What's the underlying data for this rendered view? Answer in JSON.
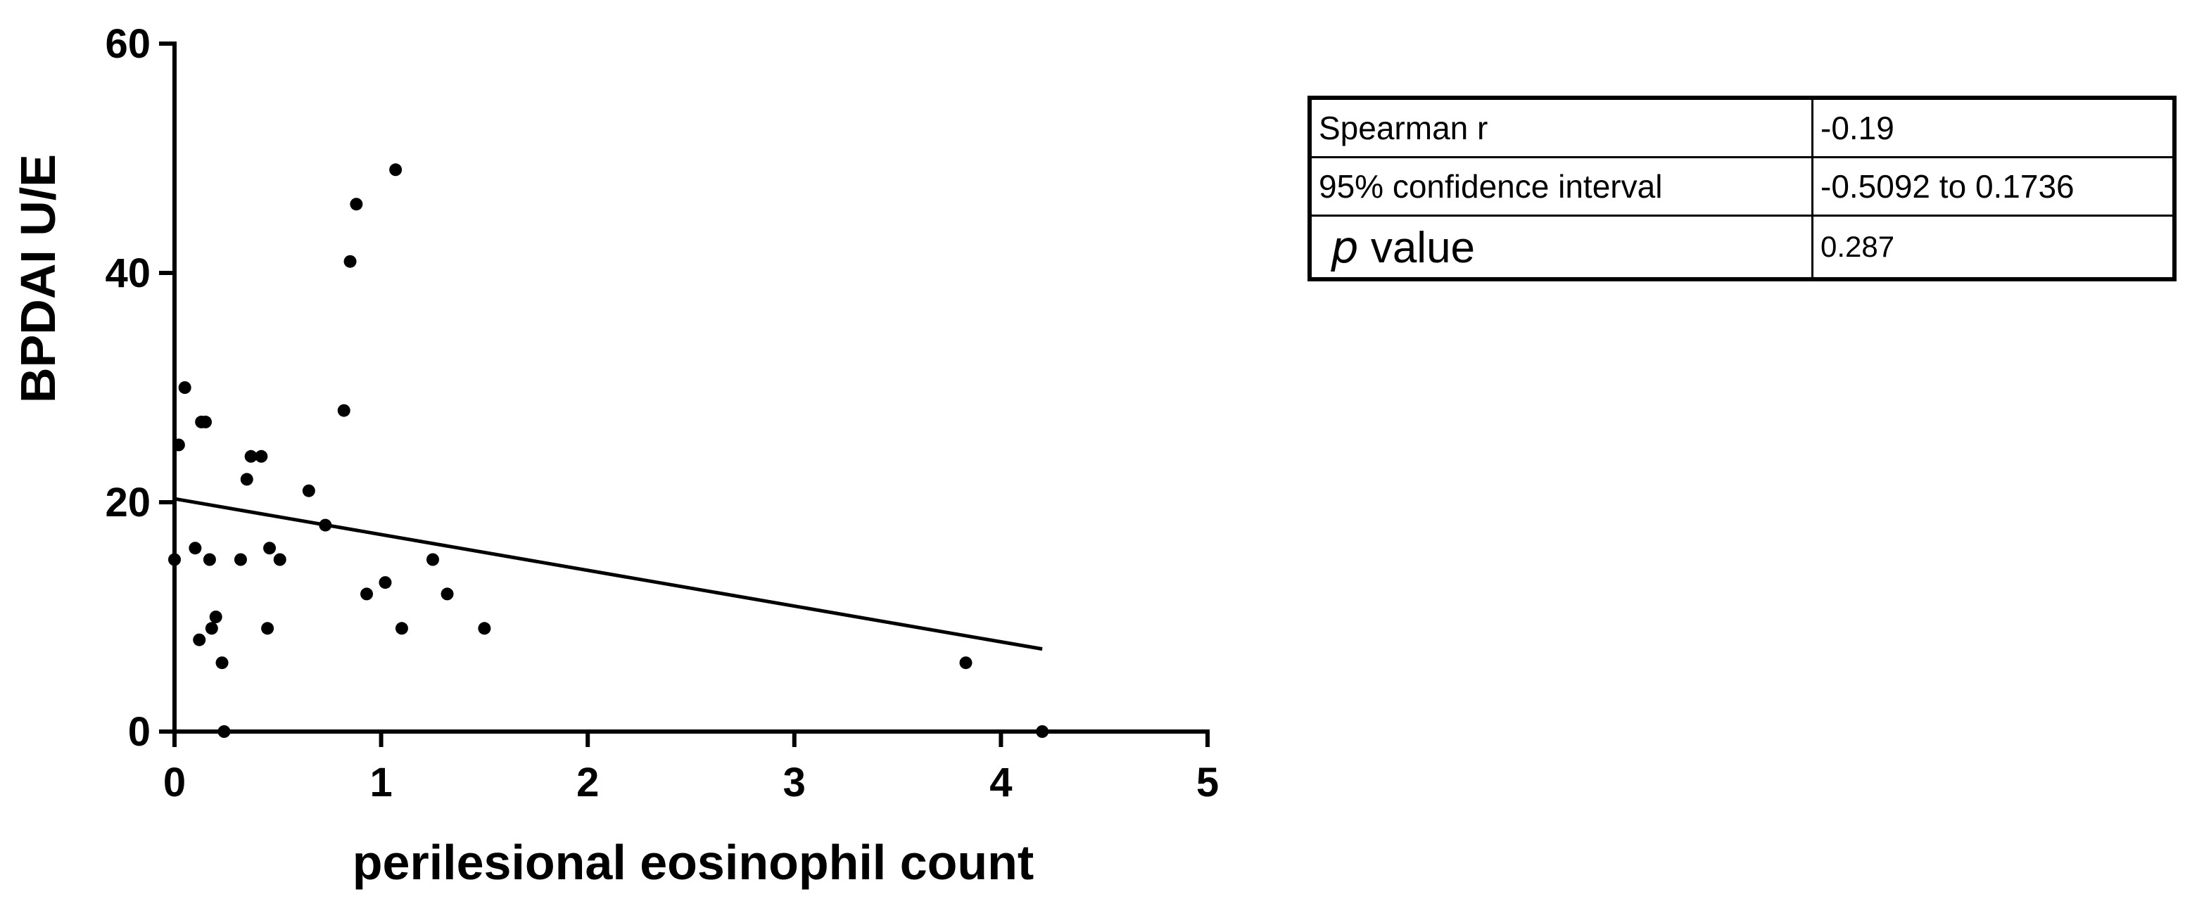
{
  "chart_data": {
    "type": "scatter",
    "xlabel": "perilesional eosinophil count",
    "ylabel": "BPDAI U/E",
    "xlim": [
      0,
      5
    ],
    "ylim": [
      0,
      60
    ],
    "xticks": [
      0,
      1,
      2,
      3,
      4,
      5
    ],
    "yticks": [
      0,
      20,
      40,
      60
    ],
    "xtick_labels": [
      "0",
      "1",
      "2",
      "3",
      "4",
      "5"
    ],
    "ytick_labels": [
      "0",
      "20",
      "40",
      "60"
    ],
    "grid": false,
    "points": [
      {
        "x": 0.0,
        "y": 15
      },
      {
        "x": 0.02,
        "y": 25
      },
      {
        "x": 0.05,
        "y": 30
      },
      {
        "x": 0.1,
        "y": 16
      },
      {
        "x": 0.12,
        "y": 8
      },
      {
        "x": 0.13,
        "y": 27
      },
      {
        "x": 0.15,
        "y": 27
      },
      {
        "x": 0.17,
        "y": 15
      },
      {
        "x": 0.18,
        "y": 9
      },
      {
        "x": 0.2,
        "y": 10
      },
      {
        "x": 0.23,
        "y": 6
      },
      {
        "x": 0.24,
        "y": 0
      },
      {
        "x": 0.32,
        "y": 15
      },
      {
        "x": 0.35,
        "y": 22
      },
      {
        "x": 0.37,
        "y": 24
      },
      {
        "x": 0.42,
        "y": 24
      },
      {
        "x": 0.45,
        "y": 9
      },
      {
        "x": 0.46,
        "y": 16
      },
      {
        "x": 0.51,
        "y": 15
      },
      {
        "x": 0.65,
        "y": 21
      },
      {
        "x": 0.73,
        "y": 18
      },
      {
        "x": 0.82,
        "y": 28
      },
      {
        "x": 0.85,
        "y": 41
      },
      {
        "x": 0.88,
        "y": 46
      },
      {
        "x": 0.93,
        "y": 12
      },
      {
        "x": 1.02,
        "y": 13
      },
      {
        "x": 1.07,
        "y": 49
      },
      {
        "x": 1.1,
        "y": 9
      },
      {
        "x": 1.25,
        "y": 15
      },
      {
        "x": 1.32,
        "y": 12
      },
      {
        "x": 1.5,
        "y": 9
      },
      {
        "x": 3.83,
        "y": 6
      },
      {
        "x": 4.2,
        "y": 0
      }
    ],
    "trendline": {
      "x": [
        0.0,
        4.2
      ],
      "y": [
        20.3,
        7.2
      ]
    }
  },
  "stats_table": {
    "rows": [
      {
        "label": "Spearman r",
        "value": "-0.19"
      },
      {
        "label": "95% confidence interval",
        "value": "-0.5092 to 0.1736"
      },
      {
        "label_italic": "p",
        "label_rest": " value",
        "value": "0.287"
      }
    ]
  }
}
